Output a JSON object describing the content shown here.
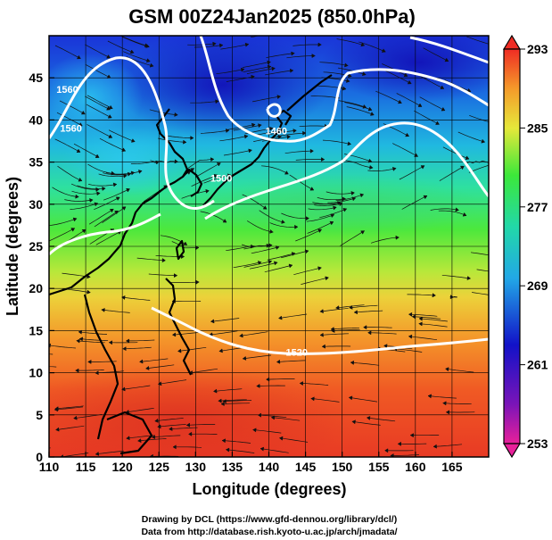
{
  "title": "GSM 00Z24Jan2025 (850.0hPa)",
  "x_axis": {
    "label": "Longitude (degrees)",
    "min": 110,
    "max": 170,
    "ticks": [
      "110",
      "115",
      "120",
      "125",
      "130",
      "135",
      "140",
      "145",
      "150",
      "155",
      "160",
      "165"
    ],
    "tick_values": [
      110,
      115,
      120,
      125,
      130,
      135,
      140,
      145,
      150,
      155,
      160,
      165
    ]
  },
  "y_axis": {
    "label": "Latitude  (degrees)",
    "min": 0,
    "max": 50,
    "ticks": [
      "0",
      "5",
      "10",
      "15",
      "20",
      "25",
      "30",
      "35",
      "40",
      "45"
    ],
    "tick_values": [
      0,
      5,
      10,
      15,
      20,
      25,
      30,
      35,
      40,
      45
    ]
  },
  "colorbar": {
    "labels": [
      "293",
      "285",
      "277",
      "269",
      "261",
      "253"
    ],
    "values": [
      293,
      285,
      277,
      269,
      261,
      253
    ],
    "min": 253,
    "max": 293
  },
  "contours": [
    {
      "label": "1560",
      "lon": 112.5,
      "lat": 43.2
    },
    {
      "label": "1560",
      "lon": 113.0,
      "lat": 38.6
    },
    {
      "label": "1460",
      "lon": 141.0,
      "lat": 38.3
    },
    {
      "label": "1500",
      "lon": 133.5,
      "lat": 32.7
    },
    {
      "label": "1520",
      "lon": 143.8,
      "lat": 12.0
    }
  ],
  "credits": {
    "line1": "Drawing by DCL (https://www.gfd-dennou.org/library/dcl/)",
    "line2": "Data from http://database.rish.kyoto-u.ac.jp/arch/jmadata/"
  },
  "colors": {
    "cold": "#1a1ad2",
    "cool": "#1ea4e6",
    "mild": "#2ee86a",
    "warm": "#e2e832",
    "hot": "#ef3d22",
    "contour": "#ffffff"
  }
}
